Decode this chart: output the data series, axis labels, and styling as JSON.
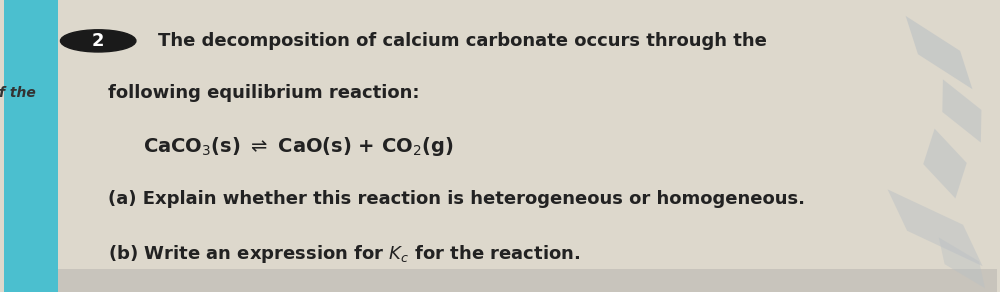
{
  "bg_main": "#ddd8cc",
  "bg_card": "#e8e4da",
  "left_stripe_color": "#4bbfcf",
  "text_color": "#222222",
  "circle_color": "#1a1a1a",
  "circle_number": "2",
  "line1": "The decomposition of calcium carbonate occurs through the",
  "line2": "following equilibrium reaction:",
  "equation_left": "CaCO",
  "equation_sub3": "3",
  "equation_mid": "(s) ⇌ CaO(s) + CO",
  "equation_sub2": "2",
  "equation_right": "(g)",
  "line_a": "(a) Explain whether this reaction is heterogeneous or homogeneous.",
  "line_b_before": "(b) Write an expression for ",
  "line_b_K": "K",
  "line_b_c": "c",
  "line_b_after": " for the reaction.",
  "font_size_main": 13,
  "font_size_eq": 14,
  "font_size_sub": 10,
  "diamond_color": "#b8bfc4"
}
